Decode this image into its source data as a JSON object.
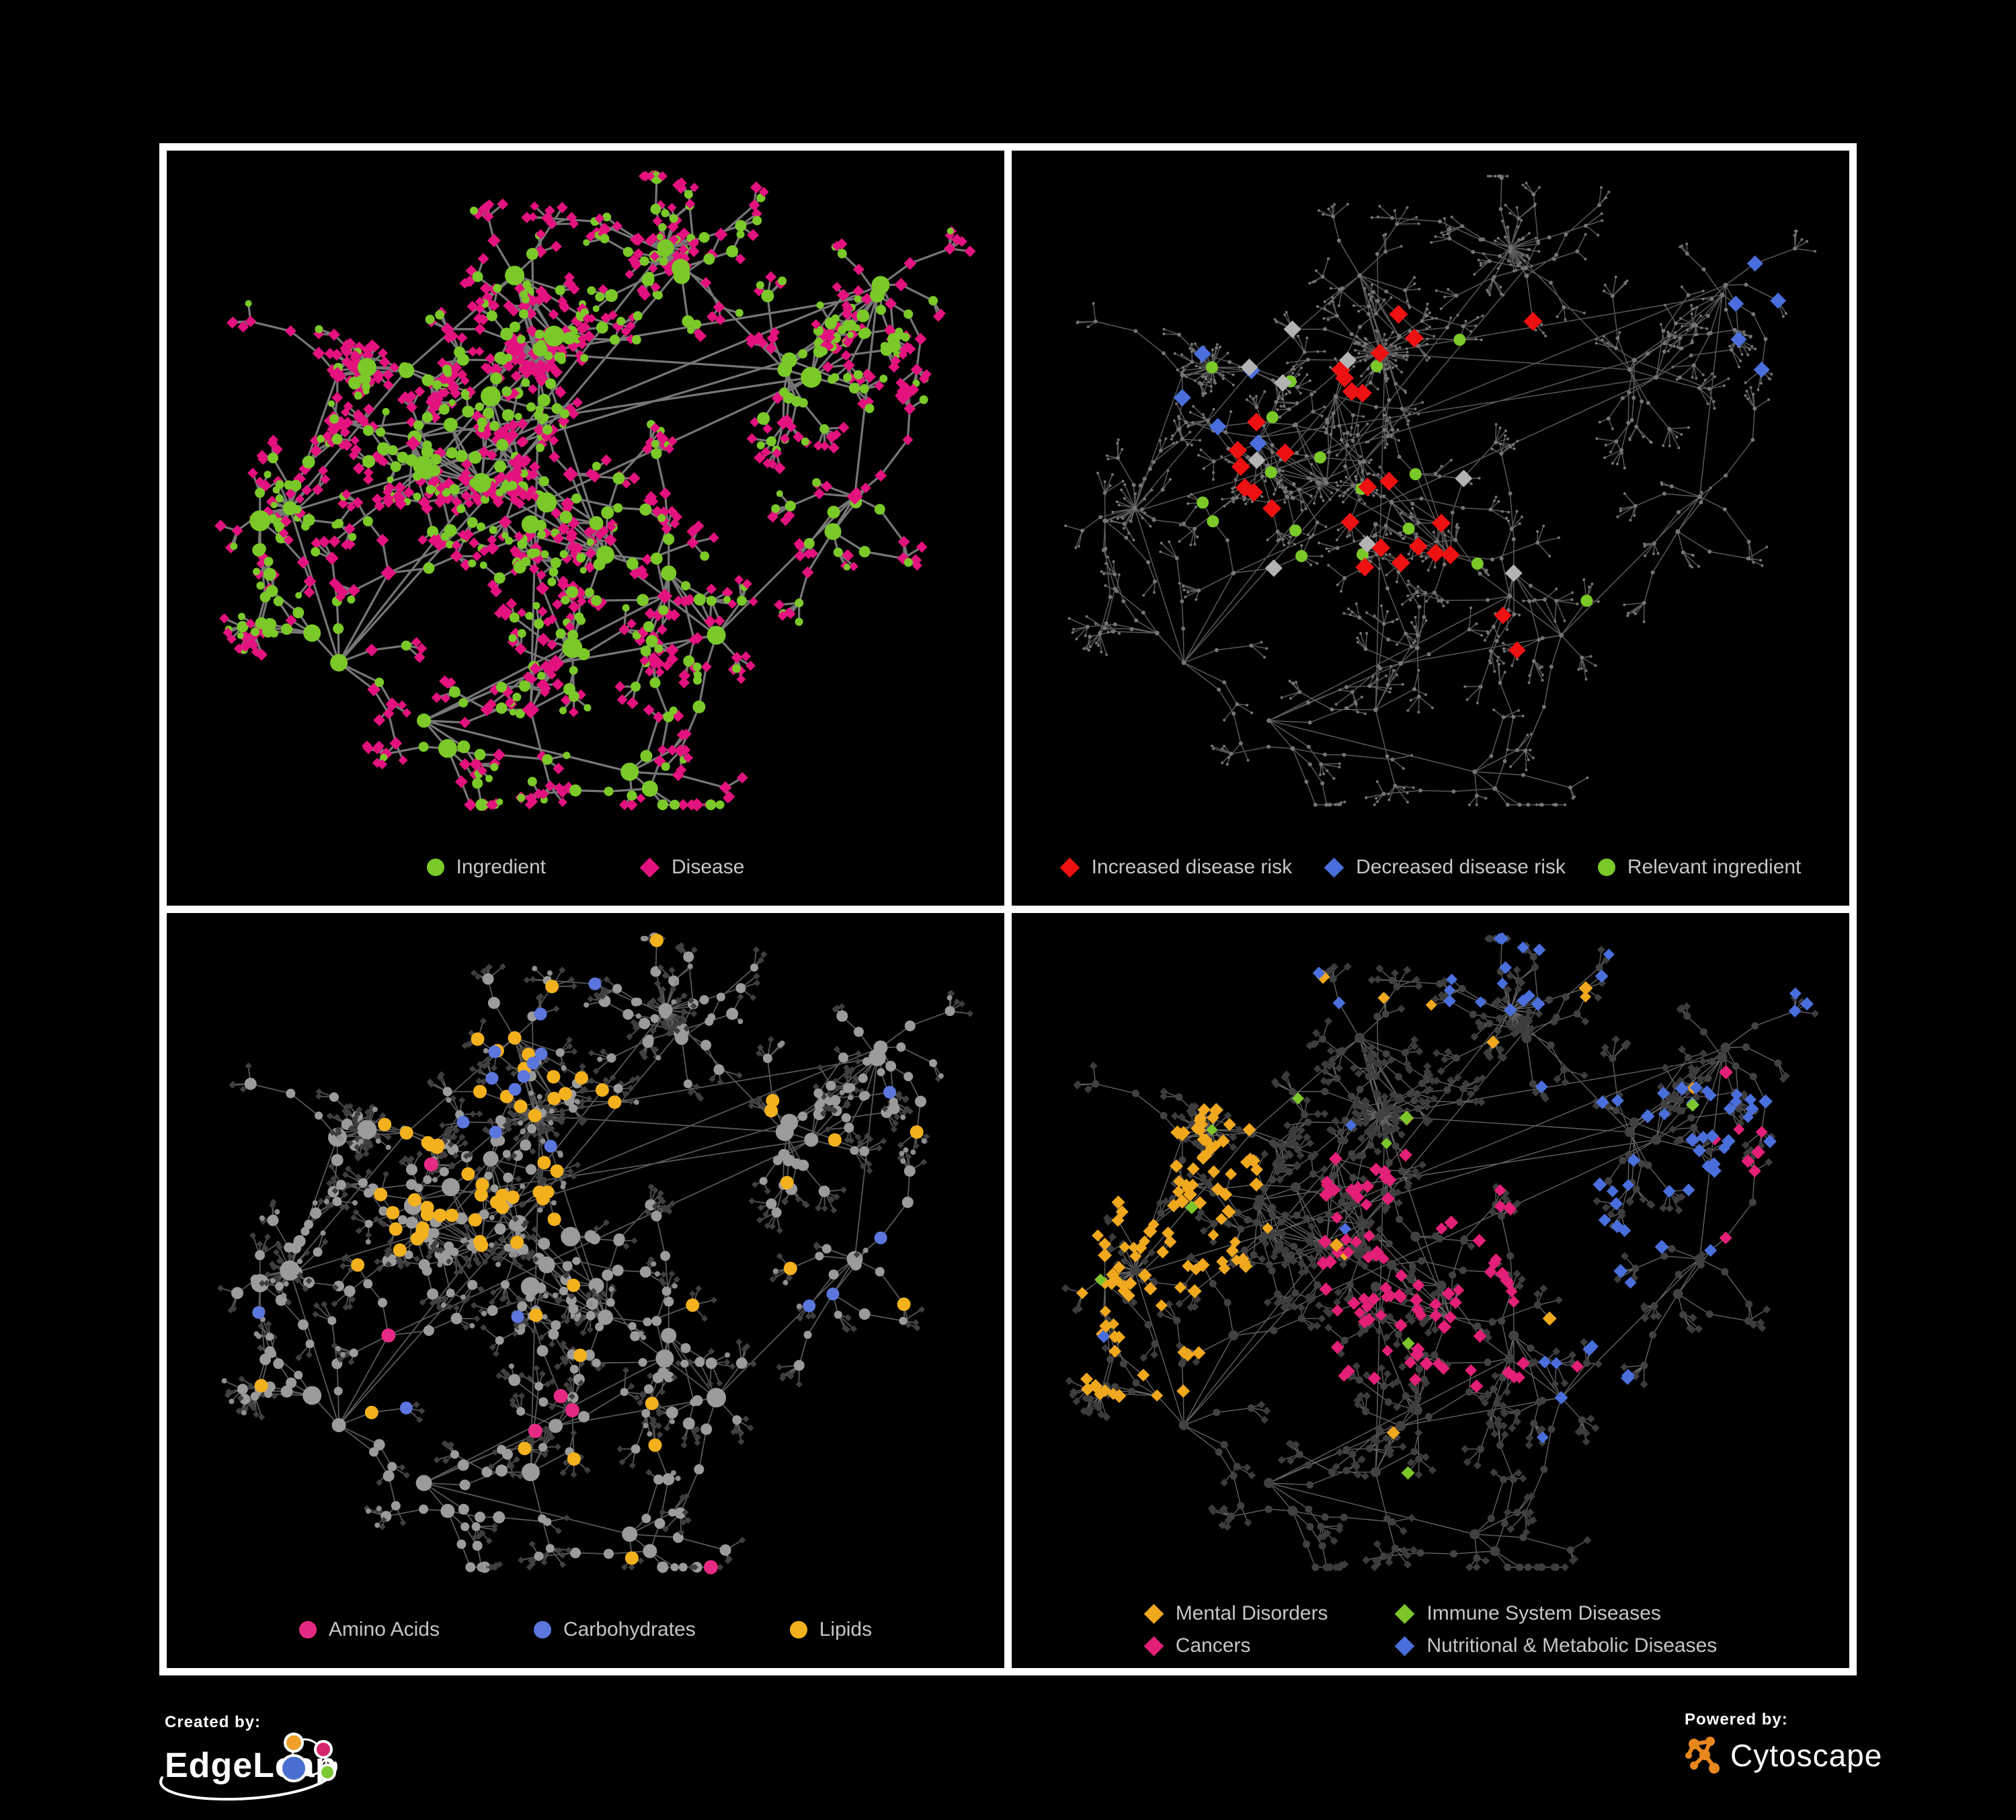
{
  "figure": {
    "background": "#000000",
    "panel_border": "#ffffff",
    "legend_text_color": "#c6c6c6"
  },
  "panels": [
    {
      "name": "ingredient-disease-network",
      "legend": [
        {
          "label": "Ingredient",
          "shape": "circle",
          "color": "#7bc928"
        },
        {
          "label": "Disease",
          "shape": "diamond",
          "color": "#e3127e"
        }
      ],
      "style": {
        "edge_color": "#7d7d7d",
        "edge_width": 3.2,
        "edge_opacity": 0.95
      }
    },
    {
      "name": "disease-risk-network",
      "legend": [
        {
          "label": "Increased disease risk",
          "shape": "diamond",
          "color": "#ee1111"
        },
        {
          "label": "Decreased disease risk",
          "shape": "diamond",
          "color": "#4a6fdc"
        },
        {
          "label": "Relevant ingredient",
          "shape": "circle",
          "color": "#7bc928"
        }
      ],
      "style": {
        "edge_color": "#696969",
        "edge_width": 1.5,
        "edge_opacity": 0.85,
        "base_node_color": "#757575",
        "neutral_diamond_color": "#b3b3b3"
      }
    },
    {
      "name": "nutrient-class-network",
      "legend": [
        {
          "label": "Amino Acids",
          "shape": "circle",
          "color": "#e62a84"
        },
        {
          "label": "Carbohydrates",
          "shape": "circle",
          "color": "#5b76dd"
        },
        {
          "label": "Lipids",
          "shape": "circle",
          "color": "#f3b11d"
        }
      ],
      "style": {
        "edge_color": "#a0a0a0",
        "edge_width": 1.8,
        "edge_opacity": 0.55,
        "base_circle_color": "#9b9b9b",
        "leaf_diamond_color": "#3f3f3f"
      }
    },
    {
      "name": "disease-class-network",
      "legend": [
        {
          "label": "Mental Disorders",
          "shape": "diamond",
          "color": "#f0a81e"
        },
        {
          "label": "Immune System Diseases",
          "shape": "diamond",
          "color": "#7cc62c"
        },
        {
          "label": "Cancers",
          "shape": "diamond",
          "color": "#e31f77"
        },
        {
          "label": "Nutritional & Metabolic Diseases",
          "shape": "diamond",
          "color": "#4a6fdc"
        }
      ],
      "style": {
        "edge_color": "#8b8b8b",
        "edge_width": 1.4,
        "edge_opacity": 0.7,
        "base_diamond_color": "#3c3c3c",
        "base_circle_color": "#414141"
      }
    }
  ],
  "footer": {
    "created_by_label": "Created by:",
    "created_by_name": "EdgeLeap",
    "powered_by_label": "Powered by:",
    "powered_by_name": "Cytoscape",
    "edgeleap_icon_colors": {
      "blue": "#4a6fd0",
      "orange": "#f0a028",
      "pink": "#d6246e",
      "green": "#7cc832"
    },
    "cytoscape_icon_color": "#e8871e"
  }
}
